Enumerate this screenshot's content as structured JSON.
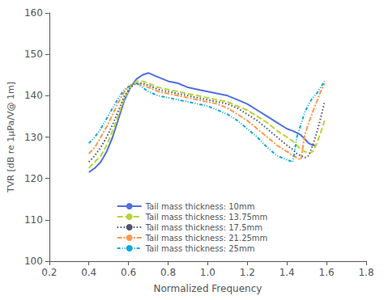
{
  "chart_data": {
    "type": "line",
    "xlabel": "Normalized Frequency",
    "ylabel": "TVR [dB re 1μPa/V@ 1m]",
    "xlim": [
      0.2,
      1.8
    ],
    "ylim": [
      100,
      160
    ],
    "xticks": [
      0.2,
      0.4,
      0.6,
      0.8,
      {
        "value": 1.0,
        "label": "1.0"
      },
      1.2,
      1.4,
      1.6,
      1.8
    ],
    "yticks": [
      100,
      110,
      120,
      130,
      140,
      150,
      160
    ],
    "grid": false,
    "legend": "bottom",
    "series": [
      {
        "name": "Tail mass thickness: 10mm",
        "line_style": "solid",
        "x": [
          0.4,
          0.43,
          0.46,
          0.49,
          0.52,
          0.55,
          0.58,
          0.61,
          0.64,
          0.67,
          0.7,
          0.75,
          0.8,
          0.85,
          0.9,
          0.95,
          1.0,
          1.05,
          1.1,
          1.15,
          1.2,
          1.25,
          1.3,
          1.35,
          1.4,
          1.43,
          1.45,
          1.47,
          1.49,
          1.51,
          1.53,
          1.55
        ],
        "values": [
          121.5,
          122.5,
          124.0,
          126.5,
          130.0,
          134.5,
          139.0,
          142.0,
          144.0,
          145.0,
          145.5,
          144.5,
          143.5,
          143.0,
          142.0,
          141.5,
          141.0,
          140.5,
          140.0,
          139.0,
          138.0,
          136.5,
          135.0,
          133.5,
          132.0,
          131.5,
          131.0,
          130.5,
          129.5,
          128.5,
          128.0,
          128.0
        ]
      },
      {
        "name": "Tail mass thickness: 13.75mm",
        "line_style": "dashed",
        "x": [
          0.4,
          0.43,
          0.46,
          0.49,
          0.52,
          0.55,
          0.58,
          0.61,
          0.64,
          0.67,
          0.7,
          0.75,
          0.8,
          0.85,
          0.9,
          0.95,
          1.0,
          1.05,
          1.1,
          1.15,
          1.2,
          1.25,
          1.3,
          1.35,
          1.4,
          1.43,
          1.45,
          1.47,
          1.49,
          1.51,
          1.53,
          1.55,
          1.57,
          1.59
        ],
        "values": [
          122.5,
          124.0,
          125.5,
          128.0,
          131.5,
          135.5,
          139.5,
          142.0,
          143.5,
          143.5,
          143.0,
          142.0,
          141.5,
          141.0,
          140.5,
          140.0,
          139.5,
          139.0,
          138.5,
          137.5,
          136.5,
          135.0,
          133.5,
          131.5,
          130.0,
          129.0,
          128.0,
          127.0,
          126.5,
          126.0,
          126.5,
          128.5,
          131.0,
          134.0
        ]
      },
      {
        "name": "Tail mass thickness: 17.5mm",
        "line_style": "dotted",
        "x": [
          0.4,
          0.43,
          0.46,
          0.49,
          0.52,
          0.55,
          0.58,
          0.61,
          0.64,
          0.67,
          0.7,
          0.75,
          0.8,
          0.85,
          0.9,
          0.95,
          1.0,
          1.05,
          1.1,
          1.15,
          1.2,
          1.25,
          1.3,
          1.35,
          1.4,
          1.43,
          1.45,
          1.47,
          1.49,
          1.51,
          1.53,
          1.55,
          1.57,
          1.59
        ],
        "values": [
          124.0,
          125.5,
          127.5,
          130.0,
          133.0,
          136.5,
          140.0,
          142.0,
          143.0,
          143.0,
          142.5,
          141.5,
          141.0,
          140.5,
          140.0,
          139.5,
          139.0,
          138.5,
          138.0,
          137.0,
          135.5,
          134.0,
          132.0,
          130.0,
          128.0,
          127.0,
          126.0,
          125.5,
          125.0,
          125.5,
          128.0,
          131.0,
          134.5,
          138.5
        ]
      },
      {
        "name": "Tail mass thickness: 21.25mm",
        "line_style": "dashdot",
        "x": [
          0.4,
          0.43,
          0.46,
          0.49,
          0.52,
          0.55,
          0.58,
          0.61,
          0.64,
          0.67,
          0.7,
          0.75,
          0.8,
          0.85,
          0.9,
          0.95,
          1.0,
          1.05,
          1.1,
          1.15,
          1.2,
          1.25,
          1.3,
          1.35,
          1.4,
          1.43,
          1.45,
          1.47,
          1.49,
          1.51,
          1.53,
          1.55,
          1.57,
          1.59
        ],
        "values": [
          126.0,
          127.5,
          130.0,
          132.5,
          135.5,
          138.5,
          141.0,
          142.5,
          143.0,
          142.5,
          142.0,
          141.0,
          140.5,
          140.0,
          139.5,
          139.0,
          138.5,
          138.0,
          137.0,
          135.5,
          134.0,
          132.0,
          130.0,
          128.0,
          126.5,
          125.5,
          125.0,
          124.5,
          130.5,
          133.5,
          136.0,
          138.5,
          141.0,
          143.0
        ]
      },
      {
        "name": "Tail mass thickness: 25mm",
        "line_style": "dashdotdot",
        "x": [
          0.4,
          0.43,
          0.46,
          0.49,
          0.52,
          0.55,
          0.58,
          0.61,
          0.64,
          0.67,
          0.7,
          0.75,
          0.8,
          0.85,
          0.9,
          0.95,
          1.0,
          1.05,
          1.1,
          1.15,
          1.2,
          1.25,
          1.3,
          1.35,
          1.4,
          1.43,
          1.45,
          1.47,
          1.49,
          1.51,
          1.53,
          1.55,
          1.57,
          1.59
        ],
        "values": [
          128.5,
          130.0,
          132.0,
          134.5,
          137.0,
          139.5,
          141.5,
          142.5,
          143.0,
          142.0,
          141.0,
          140.0,
          139.5,
          139.0,
          138.5,
          138.0,
          137.5,
          136.5,
          135.5,
          134.0,
          132.0,
          130.0,
          127.5,
          125.5,
          124.5,
          124.0,
          130.0,
          133.0,
          136.0,
          138.0,
          139.5,
          140.5,
          142.0,
          143.5
        ]
      }
    ]
  }
}
